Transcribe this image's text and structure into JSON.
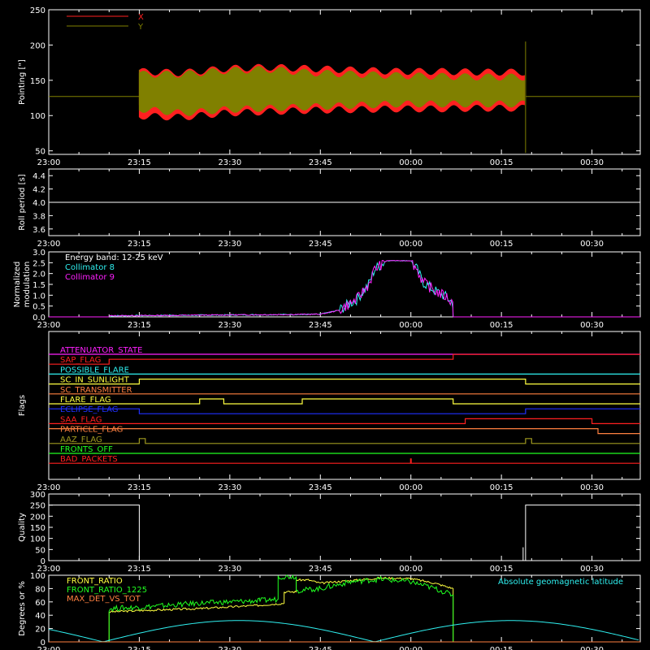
{
  "x_ticks": [
    "23:00",
    "23:15",
    "23:30",
    "23:45",
    "00:00",
    "00:15",
    "00:30"
  ],
  "colors": {
    "x": "#ff2020",
    "y": "#808000",
    "white": "#ffffff",
    "cyan": "#2ff0f0",
    "magenta": "#ff20ff",
    "red": "#ff2020",
    "yellow": "#ffff40",
    "blue": "#2030ff",
    "orange": "#ff8040",
    "olive": "#a09a20",
    "green": "#20ff20",
    "grey": "#aaaaaa"
  },
  "chart_data": [
    {
      "id": "pointing",
      "type": "area",
      "ylabel": "Pointing [\"]",
      "ylim": [
        45,
        250
      ],
      "yticks": [
        50,
        100,
        150,
        200,
        250
      ],
      "legend": [
        "X",
        "Y"
      ],
      "baseline_value": 127,
      "start_time": "23:15",
      "end_time": "00:19",
      "series": [
        {
          "name": "X",
          "upper": [
            162,
            160,
            166,
            168,
            166,
            164,
            162,
            162,
            161,
            161
          ],
          "lower": [
            100,
            98,
            104,
            106,
            108,
            109,
            110,
            110,
            111,
            111
          ]
        },
        {
          "name": "Y",
          "upper": [
            158,
            158,
            163,
            165,
            160,
            158,
            156,
            155,
            154,
            154
          ],
          "lower": [
            110,
            104,
            109,
            111,
            113,
            115,
            117,
            117,
            117,
            117
          ]
        }
      ]
    },
    {
      "id": "roll",
      "type": "line",
      "ylabel": "Roll period [s]",
      "ylim": [
        3.5,
        4.5
      ],
      "yticks": [
        3.6,
        3.8,
        4.0,
        4.2,
        4.4
      ],
      "value": 4.0
    },
    {
      "id": "modulation",
      "type": "line",
      "ylabel": [
        "Normalized",
        "modulation"
      ],
      "ylim": [
        0,
        3
      ],
      "yticks": [
        0.0,
        0.5,
        1.0,
        1.5,
        2.0,
        2.5,
        3.0
      ],
      "legend_title": "Energy band: 12-25 keV",
      "series": [
        {
          "name": "Collimator 8",
          "color": "cyan"
        },
        {
          "name": "Collimator 9",
          "color": "magenta"
        }
      ],
      "profile": [
        [
          "23:10",
          0.05
        ],
        [
          "23:45",
          0.12
        ],
        [
          "23:48",
          0.3
        ],
        [
          "23:51",
          0.8
        ],
        [
          "23:53",
          1.5
        ],
        [
          "23:54",
          2.2
        ],
        [
          "23:56",
          2.6
        ],
        [
          "00:00",
          2.6
        ],
        [
          "00:01",
          2.2
        ],
        [
          "00:02",
          1.6
        ],
        [
          "00:04",
          1.2
        ],
        [
          "00:06",
          0.9
        ],
        [
          "00:07",
          0.6
        ],
        [
          "00:07",
          0.0
        ],
        [
          "00:38",
          0.0
        ]
      ]
    },
    {
      "id": "flags",
      "type": "step",
      "ylabel": "Flags",
      "rows": [
        {
          "name": "ATTENUATOR_STATE",
          "color": "magenta",
          "steps": []
        },
        {
          "name": "SAP_FLAG",
          "color": "red",
          "steps": [
            [
              0,
              0
            ],
            [
              "23:10",
              1
            ],
            [
              "00:07",
              2
            ]
          ]
        },
        {
          "name": "POSSIBLE_FLARE",
          "color": "cyan",
          "steps": []
        },
        {
          "name": "SC_IN_SUNLIGHT",
          "color": "yellow",
          "steps": [
            [
              0,
              0
            ],
            [
              "23:15",
              1
            ],
            [
              "00:19",
              0
            ]
          ]
        },
        {
          "name": "SC_TRANSMITTER",
          "color": "orange",
          "steps": []
        },
        {
          "name": "FLARE_FLAG",
          "color": "yellow",
          "steps": [
            [
              0,
              0
            ],
            [
              "23:25",
              1
            ],
            [
              "23:29",
              0
            ],
            [
              "23:42",
              1
            ],
            [
              "00:07",
              0
            ]
          ]
        },
        {
          "name": "ECLIPSE_FLAG",
          "color": "blue",
          "steps": [
            [
              0,
              1
            ],
            [
              "23:15",
              0
            ],
            [
              "00:19",
              1
            ]
          ]
        },
        {
          "name": "SAA_FLAG",
          "color": "red",
          "steps": [
            [
              0,
              0
            ],
            [
              "00:09",
              1
            ],
            [
              "00:30",
              0
            ]
          ]
        },
        {
          "name": "PARTICLE_FLAG",
          "color": "orange",
          "steps": [
            [
              0,
              1
            ],
            [
              "00:31",
              0
            ]
          ]
        },
        {
          "name": "AAZ_FLAG",
          "color": "olive",
          "steps": [
            [
              0,
              0
            ],
            [
              "23:15",
              1
            ],
            [
              "23:16",
              0
            ],
            [
              "00:19",
              1
            ],
            [
              "00:20",
              0
            ]
          ]
        },
        {
          "name": "FRONTS_OFF",
          "color": "green",
          "steps": []
        },
        {
          "name": "BAD_PACKETS",
          "color": "red",
          "steps": [],
          "spike": "00:00"
        }
      ]
    },
    {
      "id": "quality",
      "type": "line",
      "ylabel": "Quality",
      "ylim": [
        0,
        300
      ],
      "yticks": [
        0,
        50,
        100,
        150,
        200,
        250,
        300
      ],
      "high": 250,
      "low": 0,
      "drop_time": "23:15",
      "rise_time": "00:19"
    },
    {
      "id": "ratios",
      "type": "line",
      "ylabel": "Degrees or %",
      "ylim": [
        0,
        100
      ],
      "yticks": [
        0,
        20,
        40,
        60,
        80,
        100
      ],
      "legend": [
        "FRONT_RATIO",
        "FRONT_RATIO_1225",
        "MAX_DET_VS_TOT"
      ],
      "annotation": "Absolute geomagnetic latitude",
      "series": [
        {
          "name": "FRONT_RATIO",
          "color": "yellow",
          "points": [
            [
              "23:10",
              45
            ],
            [
              "23:15",
              47
            ],
            [
              "23:25",
              50
            ],
            [
              "23:35",
              55
            ],
            [
              "23:39",
              58
            ],
            [
              "23:39",
              75
            ],
            [
              "23:41",
              75
            ],
            [
              "23:41",
              93
            ],
            [
              "23:43",
              93
            ],
            [
              "23:45",
              88
            ],
            [
              "23:50",
              92
            ],
            [
              "23:55",
              96
            ],
            [
              "00:00",
              95
            ],
            [
              "00:04",
              88
            ],
            [
              "00:07",
              80
            ]
          ]
        },
        {
          "name": "FRONT_RATIO_1225",
          "color": "green",
          "points": [
            [
              "23:10",
              50
            ],
            [
              "23:15",
              52
            ],
            [
              "23:25",
              58
            ],
            [
              "23:35",
              62
            ],
            [
              "23:38",
              64
            ],
            [
              "23:38",
              98
            ],
            [
              "23:41",
              98
            ],
            [
              "23:41",
              77
            ],
            [
              "23:45",
              80
            ],
            [
              "23:50",
              90
            ],
            [
              "23:55",
              94
            ],
            [
              "00:00",
              90
            ],
            [
              "00:04",
              80
            ],
            [
              "00:07",
              70
            ]
          ]
        },
        {
          "name": "MAX_DET_VS_TOT",
          "color": "orange",
          "points": []
        },
        {
          "name": "Absolute geomagnetic latitude",
          "color": "cyan",
          "points": [
            [
              "23:00",
              22
            ],
            [
              "23:04",
              10
            ],
            [
              "23:09",
              0
            ],
            [
              "23:20",
              20
            ],
            [
              "23:31",
              32
            ],
            [
              "23:42",
              20
            ],
            [
              "23:54",
              0
            ],
            [
              "00:05",
              20
            ],
            [
              "00:16",
              32
            ],
            [
              "00:27",
              20
            ],
            [
              "00:38",
              0
            ]
          ]
        }
      ]
    }
  ]
}
